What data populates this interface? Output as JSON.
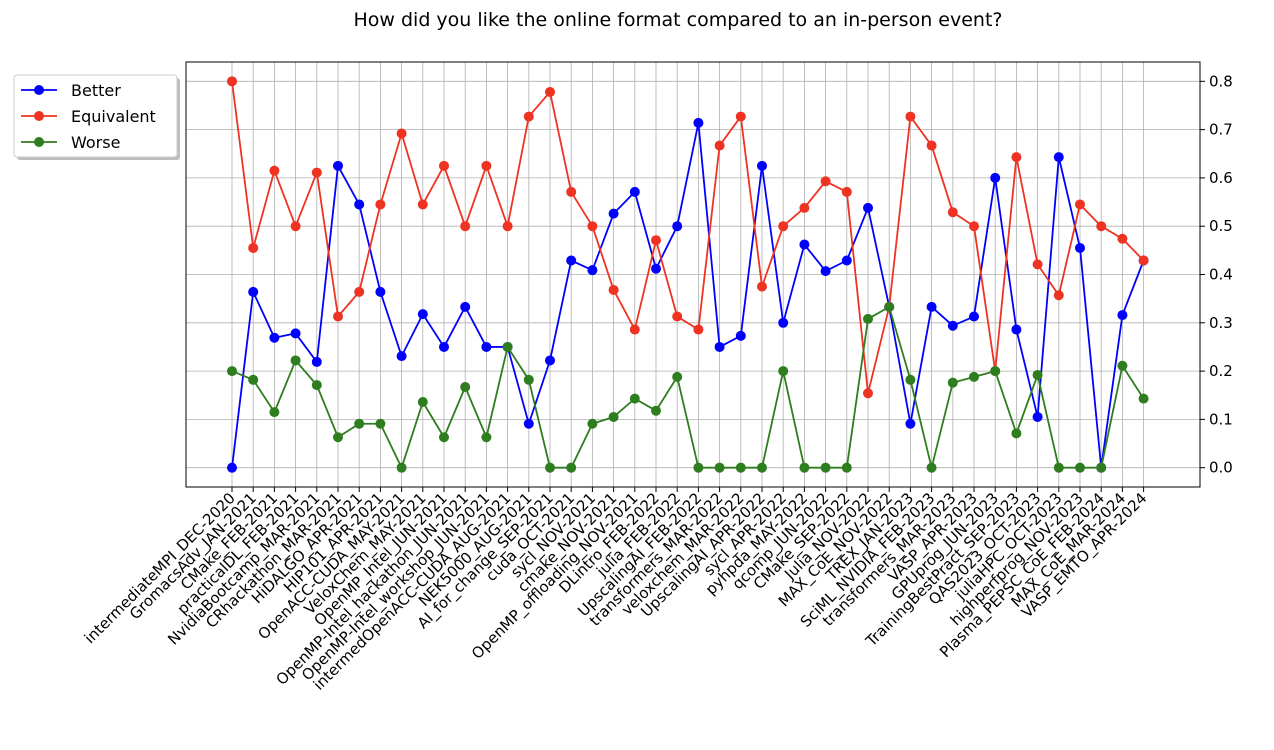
{
  "chart_data": {
    "type": "line",
    "title": "How did you like the online format compared to an in-person event?",
    "xlabel": "",
    "ylabel": "",
    "ylim": [
      -0.04,
      0.84
    ],
    "yticks": [
      0.0,
      0.1,
      0.2,
      0.3,
      0.4,
      0.5,
      0.6,
      0.7,
      0.8
    ],
    "y_axis_side": "right",
    "grid": true,
    "legend_position": "outside-top-left",
    "categories": [
      "intermediateMPI_DEC-2020",
      "GromacsAdv_JAN-2021",
      "CMake_FEB-2021",
      "practicalDL_FEB-2021",
      "NvidiaBootcamp_MAR-2021",
      "CRhackathon_MAR-2021",
      "HiDALGO_APR-2021",
      "HIP101_APR-2021",
      "OpenACC-CUDA_MAY-2021",
      "VeloxChem_MAY-2021",
      "OpenMP_Intel_JUN-2021",
      "OpenMP-Intel_hackathon_JUN-2021",
      "OpenMP-Intel_workshop_JUN-2021",
      "intermedOpenACC-CUDA_AUG-2021",
      "NEK5000_AUG-2021",
      "AI_for_change_SEP-2021",
      "cuda_OCT-2021",
      "sycl_NOV-2021",
      "cmake_NOV-2021",
      "OpenMP_offloading_NOV-2021",
      "DLintro_FEB-2022",
      "julia_FEB-2022",
      "UpscalingAI_FEB-2022",
      "transformers_MAR-2022",
      "veloxchem_MAR-2022",
      "UpscalingAI_APR-2022",
      "sycl_APR-2022",
      "pyhpda_MAY-2022",
      "qcomp_JUN-2022",
      "CMake_SEP-2022",
      "Julia_NOV-2022",
      "MAX_CoE_NOV-2022",
      "TREX_JAN-2023",
      "SciML_NVIDIA_FEB-2023",
      "transformers_MAR-2023",
      "VASP_APR-2023",
      "GPUprog_JUN-2023",
      "TrainingBestPract_SEP-2023",
      "QAS2023_OCT-2023",
      "juliaHPC_OCT-2023",
      "highperfprog_NOV-2023",
      "Plasma_PEPSC_CoE_FEB-2024",
      "MAX_CoE_MAR-2024",
      "VASP_EMTO_APR-2024"
    ],
    "series": [
      {
        "name": "Better",
        "color": "#0000ff",
        "values": [
          0.0,
          0.364,
          0.269,
          0.278,
          0.219,
          0.625,
          0.545,
          0.364,
          0.231,
          0.318,
          0.25,
          0.333,
          0.25,
          0.25,
          0.091,
          0.222,
          0.429,
          0.409,
          0.526,
          0.571,
          0.412,
          0.5,
          0.714,
          0.25,
          0.273,
          0.625,
          0.3,
          0.462,
          0.407,
          0.429,
          0.538,
          0.333,
          0.091,
          0.333,
          0.294,
          0.313,
          0.6,
          0.286,
          0.105,
          0.643,
          0.455,
          0.0,
          0.316,
          0.429
        ]
      },
      {
        "name": "Equivalent",
        "color": "#ee3322",
        "values": [
          0.8,
          0.455,
          0.615,
          0.5,
          0.611,
          0.313,
          0.364,
          0.545,
          0.692,
          0.545,
          0.625,
          0.5,
          0.625,
          0.5,
          0.727,
          0.778,
          0.571,
          0.5,
          0.368,
          0.286,
          0.471,
          0.313,
          0.286,
          0.667,
          0.727,
          0.375,
          0.5,
          0.538,
          0.593,
          0.571,
          0.154,
          0.333,
          0.727,
          0.667,
          0.529,
          0.5,
          0.2,
          0.643,
          0.421,
          0.357,
          0.545,
          0.5,
          0.474,
          0.429
        ]
      },
      {
        "name": "Worse",
        "color": "#2e7d1e",
        "values": [
          0.2,
          0.182,
          0.115,
          0.222,
          0.171,
          0.063,
          0.091,
          0.091,
          0.0,
          0.136,
          0.063,
          0.167,
          0.063,
          0.25,
          0.182,
          0.0,
          0.0,
          0.091,
          0.105,
          0.143,
          0.118,
          0.188,
          0.0,
          0.0,
          0.0,
          0.0,
          0.2,
          0.0,
          0.0,
          0.0,
          0.308,
          0.333,
          0.182,
          0.0,
          0.176,
          0.188,
          0.2,
          0.071,
          0.192,
          0.0,
          0.0,
          0.0,
          0.211,
          0.143
        ]
      }
    ]
  }
}
